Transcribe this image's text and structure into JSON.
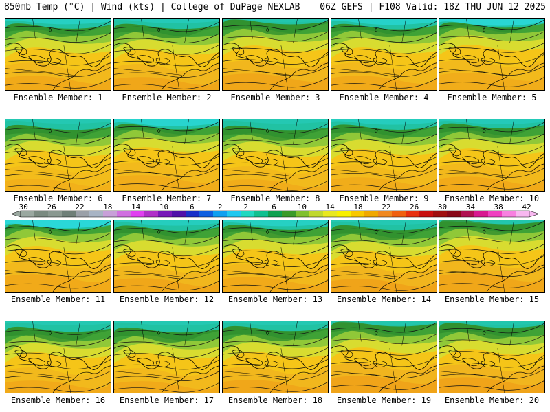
{
  "header": {
    "left": "850mb Temp (°C) | Wind (kts) | College of DuPage NEXLAB",
    "right": "06Z GEFS | F108 Valid: 18Z THU JUN 12 2025"
  },
  "panels": [
    {
      "label": "Ensemble Member: 1"
    },
    {
      "label": "Ensemble Member: 2"
    },
    {
      "label": "Ensemble Member: 3"
    },
    {
      "label": "Ensemble Member: 4"
    },
    {
      "label": "Ensemble Member: 5"
    },
    {
      "label": "Ensemble Member: 6"
    },
    {
      "label": "Ensemble Member: 7"
    },
    {
      "label": "Ensemble Member: 8"
    },
    {
      "label": "Ensemble Member: 9"
    },
    {
      "label": "Ensemble Member: 10"
    },
    {
      "label": "Ensemble Member: 11"
    },
    {
      "label": "Ensemble Member: 12"
    },
    {
      "label": "Ensemble Member: 13"
    },
    {
      "label": "Ensemble Member: 14"
    },
    {
      "label": "Ensemble Member: 15"
    },
    {
      "label": "Ensemble Member: 16"
    },
    {
      "label": "Ensemble Member: 17"
    },
    {
      "label": "Ensemble Member: 18"
    },
    {
      "label": "Ensemble Member: 19"
    },
    {
      "label": "Ensemble Member: 20"
    }
  ],
  "colorbar": {
    "tick_labels": [
      "−30",
      "−26",
      "−22",
      "−18",
      "−14",
      "−10",
      "−6",
      "−2",
      "2",
      "6",
      "10",
      "14",
      "18",
      "22",
      "26",
      "30",
      "34",
      "38",
      "42"
    ],
    "colors": [
      "#9aa8a0",
      "#7a8a80",
      "#8a9890",
      "#6f7f78",
      "#9aa0a8",
      "#a8b4c4",
      "#c8a0d8",
      "#d070e0",
      "#e040f0",
      "#b030c8",
      "#7818b8",
      "#5010a8",
      "#1830c8",
      "#1060e0",
      "#10a0f0",
      "#20c8f0",
      "#20d8c0",
      "#10c090",
      "#10a050",
      "#3a9a2a",
      "#80c030",
      "#c0d830",
      "#e8e820",
      "#f8f000",
      "#f8c800",
      "#f0a800",
      "#f08820",
      "#f06010",
      "#e83010",
      "#c81010",
      "#a01010",
      "#880818",
      "#b01050",
      "#d81890",
      "#f040c0",
      "#f880e0",
      "#f8b8f0"
    ]
  }
}
